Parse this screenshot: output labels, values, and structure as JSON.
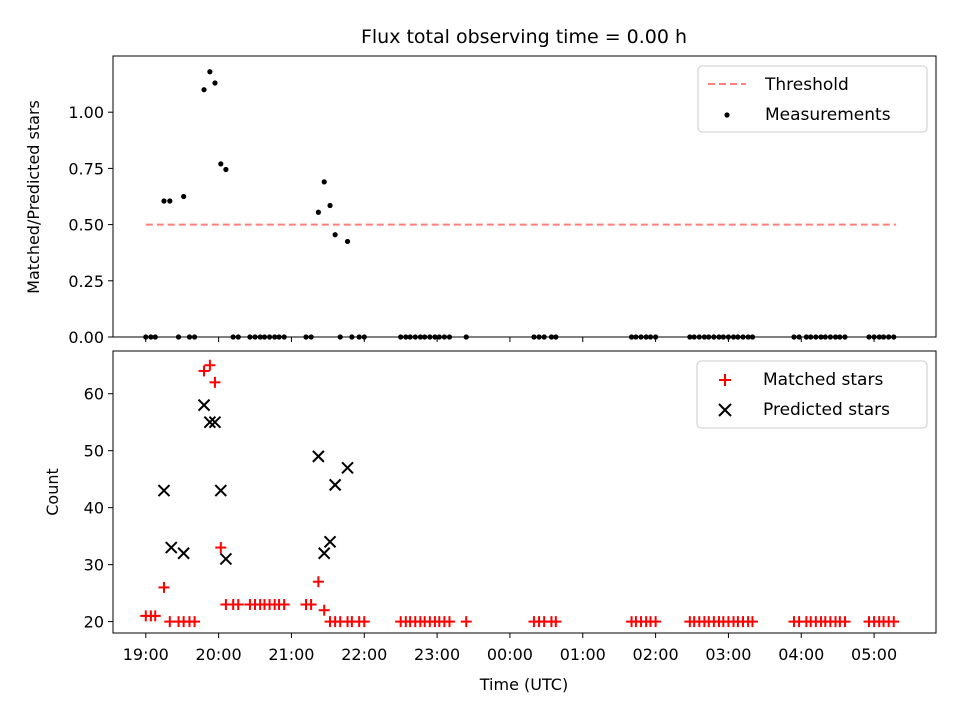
{
  "chart_data": [
    {
      "type": "scatter",
      "title": "Flux total observing time = 0.00 h",
      "xlabel": "",
      "ylabel": "Matched/Predicted stars",
      "ylim": [
        0,
        1.25
      ],
      "yticks": [
        0.0,
        0.25,
        0.5,
        0.75,
        1.0
      ],
      "ytick_labels": [
        "0.00",
        "0.25",
        "0.50",
        "0.75",
        "1.00"
      ],
      "xlim": [
        18.55,
        29.85
      ],
      "xticks": [
        19,
        20,
        21,
        22,
        23,
        24,
        25,
        26,
        27,
        28,
        29
      ],
      "xtick_labels_shown": false,
      "legend_position": "top-right",
      "threshold": {
        "name": "Threshold",
        "value": 0.5,
        "x_range": [
          19.0,
          29.3
        ],
        "color": "#ff7f7f",
        "style": "dashed"
      },
      "series": [
        {
          "name": "Measurements",
          "marker": "dot",
          "color": "#000000",
          "x": [
            19.25,
            19.33,
            19.52,
            19.8,
            19.88,
            19.95,
            20.03,
            20.1,
            21.37,
            21.45,
            21.53,
            21.6,
            21.77
          ],
          "y": [
            0.605,
            0.605,
            0.625,
            1.1,
            1.18,
            1.13,
            0.77,
            0.745,
            0.555,
            0.69,
            0.585,
            0.455,
            0.425
          ]
        },
        {
          "name": "",
          "marker": "dot",
          "color": "#000000",
          "x": [
            19.0,
            19.07,
            19.13,
            19.45,
            19.6,
            19.67,
            20.2,
            20.27,
            20.43,
            20.5,
            20.57,
            20.63,
            20.7,
            20.77,
            20.83,
            20.9,
            21.2,
            21.27,
            21.67,
            21.83,
            21.93,
            22.0,
            22.5,
            22.57,
            22.63,
            22.7,
            22.77,
            22.83,
            22.9,
            22.97,
            23.03,
            23.1,
            23.17,
            23.4,
            24.33,
            24.4,
            24.47,
            24.57,
            24.63,
            25.67,
            25.73,
            25.8,
            25.87,
            25.93,
            26.0,
            26.47,
            26.53,
            26.6,
            26.67,
            26.73,
            26.8,
            26.87,
            26.93,
            27.0,
            27.07,
            27.13,
            27.2,
            27.27,
            27.33,
            27.9,
            27.97,
            28.07,
            28.13,
            28.2,
            28.27,
            28.33,
            28.4,
            28.47,
            28.53,
            28.6,
            28.93,
            29.0,
            29.07,
            29.13,
            29.2,
            29.27
          ],
          "y": [
            0,
            0,
            0,
            0,
            0,
            0,
            0,
            0,
            0,
            0,
            0,
            0,
            0,
            0,
            0,
            0,
            0,
            0,
            0,
            0,
            0,
            0,
            0,
            0,
            0,
            0,
            0,
            0,
            0,
            0,
            0,
            0,
            0,
            0,
            0,
            0,
            0,
            0,
            0,
            0,
            0,
            0,
            0,
            0,
            0,
            0,
            0,
            0,
            0,
            0,
            0,
            0,
            0,
            0,
            0,
            0,
            0,
            0,
            0,
            0,
            0,
            0,
            0,
            0,
            0,
            0,
            0,
            0,
            0,
            0,
            0,
            0,
            0,
            0,
            0,
            0
          ]
        }
      ]
    },
    {
      "type": "scatter",
      "title": "",
      "xlabel": "Time (UTC)",
      "ylabel": "Count",
      "ylim": [
        18,
        67.5
      ],
      "yticks": [
        20,
        30,
        40,
        50,
        60
      ],
      "ytick_labels": [
        "20",
        "30",
        "40",
        "50",
        "60"
      ],
      "xlim": [
        18.55,
        29.85
      ],
      "xticks": [
        19,
        20,
        21,
        22,
        23,
        24,
        25,
        26,
        27,
        28,
        29
      ],
      "xtick_labels": [
        "19:00",
        "20:00",
        "21:00",
        "22:00",
        "23:00",
        "00:00",
        "01:00",
        "02:00",
        "03:00",
        "04:00",
        "05:00"
      ],
      "legend_position": "top-right",
      "series": [
        {
          "name": "Matched stars",
          "marker": "plus",
          "color": "#ff0000",
          "x": [
            19.0,
            19.07,
            19.13,
            19.25,
            19.33,
            19.45,
            19.52,
            19.6,
            19.67,
            19.8,
            19.88,
            19.95,
            20.03,
            20.1,
            20.2,
            20.27,
            20.43,
            20.5,
            20.57,
            20.63,
            20.7,
            20.77,
            20.83,
            20.9,
            21.2,
            21.27,
            21.37,
            21.45,
            21.53,
            21.6,
            21.67,
            21.77,
            21.83,
            21.93,
            22.0,
            22.5,
            22.57,
            22.63,
            22.7,
            22.77,
            22.83,
            22.9,
            22.97,
            23.03,
            23.1,
            23.17,
            23.4,
            24.33,
            24.4,
            24.47,
            24.57,
            24.63,
            25.67,
            25.73,
            25.8,
            25.87,
            25.93,
            26.0,
            26.47,
            26.53,
            26.6,
            26.67,
            26.73,
            26.8,
            26.87,
            26.93,
            27.0,
            27.07,
            27.13,
            27.2,
            27.27,
            27.33,
            27.9,
            27.97,
            28.07,
            28.13,
            28.2,
            28.27,
            28.33,
            28.4,
            28.47,
            28.53,
            28.6,
            28.93,
            29.0,
            29.07,
            29.13,
            29.2,
            29.27
          ],
          "y": [
            21,
            21,
            21,
            26,
            20,
            20,
            20,
            20,
            20,
            64,
            65,
            62,
            33,
            23,
            23,
            23,
            23,
            23,
            23,
            23,
            23,
            23,
            23,
            23,
            23,
            23,
            27,
            22,
            20,
            20,
            20,
            20,
            20,
            20,
            20,
            20,
            20,
            20,
            20,
            20,
            20,
            20,
            20,
            20,
            20,
            20,
            20,
            20,
            20,
            20,
            20,
            20,
            20,
            20,
            20,
            20,
            20,
            20,
            20,
            20,
            20,
            20,
            20,
            20,
            20,
            20,
            20,
            20,
            20,
            20,
            20,
            20,
            20,
            20,
            20,
            20,
            20,
            20,
            20,
            20,
            20,
            20,
            20,
            20,
            20,
            20,
            20,
            20,
            20
          ]
        },
        {
          "name": "Predicted stars",
          "marker": "x",
          "color": "#000000",
          "x": [
            19.25,
            19.35,
            19.52,
            19.8,
            19.88,
            19.95,
            20.03,
            20.1,
            21.37,
            21.45,
            21.53,
            21.6,
            21.77
          ],
          "y": [
            43,
            33,
            32,
            58,
            55,
            55,
            43,
            31,
            49,
            32,
            34,
            44,
            47
          ]
        }
      ]
    }
  ]
}
